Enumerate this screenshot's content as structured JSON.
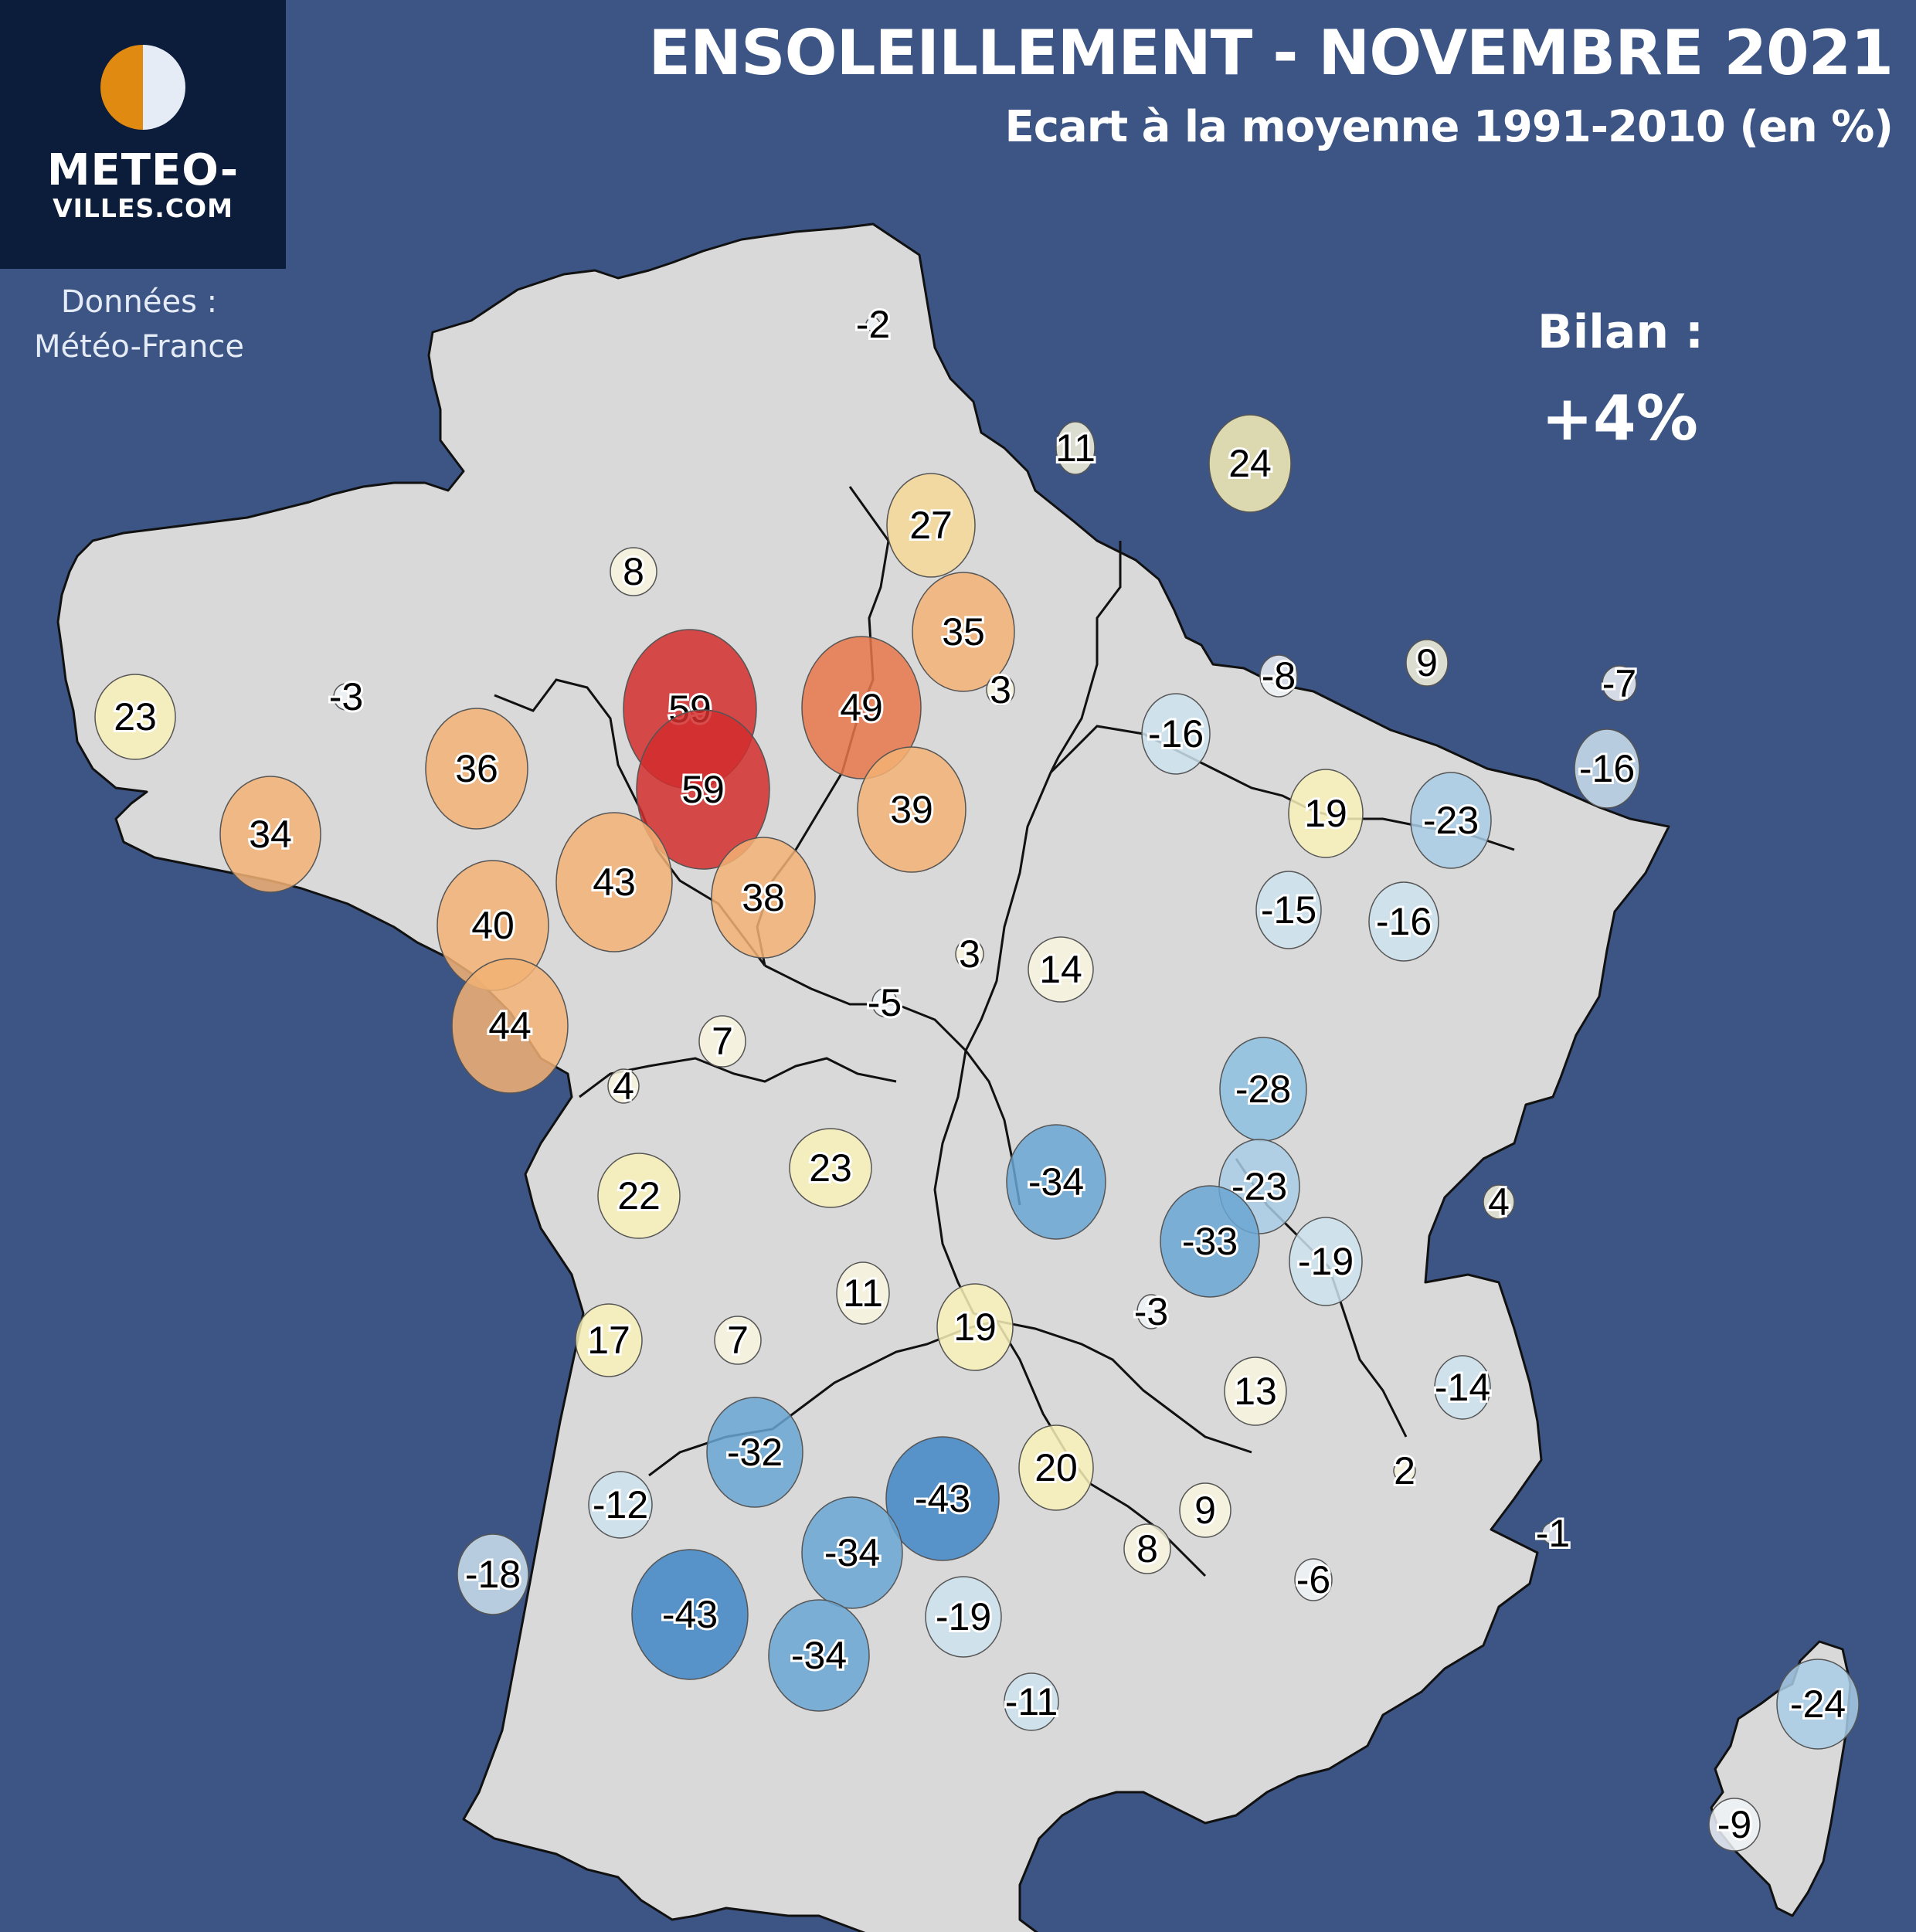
{
  "header": {
    "title": "ENSOLEILLEMENT - NOVEMBRE 2021",
    "subtitle": "Ecart à la moyenne 1991-2010 (en %)"
  },
  "logo": {
    "line1": "METEO-",
    "line2": "VILLES.COM"
  },
  "source": {
    "line1": "Données :",
    "line2": "Météo-France"
  },
  "summary": {
    "label": "Bilan :",
    "value": "+4%"
  },
  "colors": {
    "background": "#3c5585",
    "land": "#d9d9d9",
    "logo_background": "#0b1d3a",
    "logo_orange": "#e08a12",
    "logo_light": "#e6ecf6"
  },
  "stations": [
    {
      "value": "-2"
    },
    {
      "value": "11"
    },
    {
      "value": "24"
    },
    {
      "value": "27"
    },
    {
      "value": "8"
    },
    {
      "value": "35"
    },
    {
      "value": "3"
    },
    {
      "value": "49"
    },
    {
      "value": "59"
    },
    {
      "value": "59"
    },
    {
      "value": "23"
    },
    {
      "value": "-3"
    },
    {
      "value": "36"
    },
    {
      "value": "34"
    },
    {
      "value": "39"
    },
    {
      "value": "43"
    },
    {
      "value": "40"
    },
    {
      "value": "38"
    },
    {
      "value": "44"
    },
    {
      "value": "3"
    },
    {
      "value": "14"
    },
    {
      "value": "-5"
    },
    {
      "value": "7"
    },
    {
      "value": "4"
    },
    {
      "value": "-8"
    },
    {
      "value": "9"
    },
    {
      "value": "-7"
    },
    {
      "value": "-16"
    },
    {
      "value": "-16"
    },
    {
      "value": "19"
    },
    {
      "value": "-23"
    },
    {
      "value": "-15"
    },
    {
      "value": "-16"
    },
    {
      "value": "-28"
    },
    {
      "value": "-34"
    },
    {
      "value": "-23"
    },
    {
      "value": "-33"
    },
    {
      "value": "-19"
    },
    {
      "value": "4"
    },
    {
      "value": "23"
    },
    {
      "value": "22"
    },
    {
      "value": "11"
    },
    {
      "value": "19"
    },
    {
      "value": "-3"
    },
    {
      "value": "17"
    },
    {
      "value": "7"
    },
    {
      "value": "13"
    },
    {
      "value": "-14"
    },
    {
      "value": "-32"
    },
    {
      "value": "20"
    },
    {
      "value": "2"
    },
    {
      "value": "-43"
    },
    {
      "value": "-12"
    },
    {
      "value": "9"
    },
    {
      "value": "-34"
    },
    {
      "value": "8"
    },
    {
      "value": "-1"
    },
    {
      "value": "-18"
    },
    {
      "value": "-43"
    },
    {
      "value": "-19"
    },
    {
      "value": "-6"
    },
    {
      "value": "-34"
    },
    {
      "value": "-11"
    },
    {
      "value": "-24"
    },
    {
      "value": "-9"
    }
  ]
}
